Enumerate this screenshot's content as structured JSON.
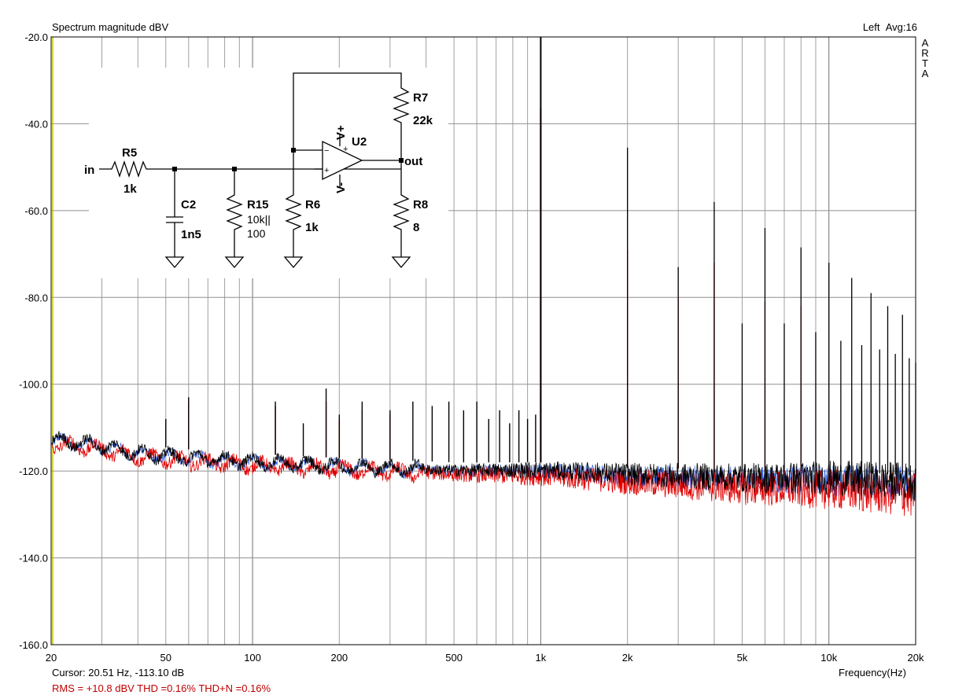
{
  "header": {
    "title": "Spectrum magnitude dBV",
    "channel": "Left",
    "avg": "Avg:16",
    "brand": [
      "A",
      "R",
      "T",
      "A"
    ]
  },
  "footer": {
    "cursor": "Cursor: 20.51 Hz, -113.10 dB",
    "rms": "RMS =  +10.8 dBV   THD =0.16%   THD+N =0.16%"
  },
  "schematic": {
    "labels": {
      "in": "in",
      "R5": "R5",
      "R5v": "1k",
      "C2": "C2",
      "C2v": "1n5",
      "R15": "R15",
      "R15v1": "10k||",
      "R15v2": "100",
      "R6": "R6",
      "R6v": "1k",
      "R7": "R7",
      "R7v": "22k",
      "R8": "R8",
      "R8v": "8",
      "U2": "U2",
      "Vp": "V+",
      "Vm": "V-",
      "out": "out",
      "minus": "−",
      "plus": "+"
    }
  },
  "colors": {
    "grid": "#a0a0a0",
    "trace_black": "#000000",
    "trace_red": "#e00000",
    "trace_blue": "#3060e0",
    "yaxis": "#c8c800"
  },
  "chart_data": {
    "type": "line",
    "title": "Spectrum magnitude dBV",
    "xlabel": "Frequency(Hz)",
    "ylabel": "",
    "xscale": "log",
    "xlim": [
      20,
      20000
    ],
    "ylim": [
      -160,
      -20
    ],
    "xticks": [
      20,
      50,
      100,
      200,
      500,
      1000,
      2000,
      5000,
      10000,
      20000
    ],
    "xtick_labels": [
      "20",
      "50",
      "100",
      "200",
      "500",
      "1k",
      "2k",
      "5k",
      "10k",
      "20k"
    ],
    "yticks": [
      -20,
      -40,
      -60,
      -80,
      -100,
      -120,
      -140,
      -160
    ],
    "ytick_labels": [
      "-20.0",
      "-40.0",
      "-60.0",
      "-80.0",
      "-100.0",
      "-120.0",
      "-140.0",
      "-160.0"
    ],
    "grid": true,
    "series": [
      {
        "color": "black",
        "harmonics": [
          {
            "f": 1000,
            "db": -20
          },
          {
            "f": 2000,
            "db": -45.5
          },
          {
            "f": 3000,
            "db": -73
          },
          {
            "f": 4000,
            "db": -58
          },
          {
            "f": 5000,
            "db": -86
          },
          {
            "f": 6000,
            "db": -64
          },
          {
            "f": 7000,
            "db": -86
          },
          {
            "f": 8000,
            "db": -68.5
          },
          {
            "f": 9000,
            "db": -88
          },
          {
            "f": 10000,
            "db": -72
          },
          {
            "f": 11000,
            "db": -90
          },
          {
            "f": 12000,
            "db": -75.5
          },
          {
            "f": 13000,
            "db": -91
          },
          {
            "f": 14000,
            "db": -79
          },
          {
            "f": 15000,
            "db": -92
          },
          {
            "f": 16000,
            "db": -82
          },
          {
            "f": 17000,
            "db": -93
          },
          {
            "f": 18000,
            "db": -84
          },
          {
            "f": 19000,
            "db": -94
          },
          {
            "f": 20000,
            "db": -95
          }
        ],
        "spurs": [
          {
            "f": 50,
            "db": -108
          },
          {
            "f": 60,
            "db": -103
          },
          {
            "f": 120,
            "db": -104
          },
          {
            "f": 150,
            "db": -109
          },
          {
            "f": 180,
            "db": -101
          },
          {
            "f": 200,
            "db": -107
          },
          {
            "f": 240,
            "db": -104
          },
          {
            "f": 300,
            "db": -106
          },
          {
            "f": 360,
            "db": -104
          },
          {
            "f": 420,
            "db": -105
          },
          {
            "f": 480,
            "db": -104
          },
          {
            "f": 540,
            "db": -106
          },
          {
            "f": 600,
            "db": -104
          },
          {
            "f": 660,
            "db": -108
          },
          {
            "f": 720,
            "db": -106
          },
          {
            "f": 780,
            "db": -109
          },
          {
            "f": 840,
            "db": -106
          },
          {
            "f": 900,
            "db": -108
          },
          {
            "f": 960,
            "db": -107
          }
        ]
      },
      {
        "color": "red",
        "harmonics": [
          {
            "f": 1000,
            "db": -36.5
          },
          {
            "f": 2000,
            "db": -69
          },
          {
            "f": 3000,
            "db": -80
          },
          {
            "f": 4000,
            "db": -72
          },
          {
            "f": 6000,
            "db": -81
          },
          {
            "f": 8000,
            "db": -82
          }
        ],
        "spurs": [
          {
            "f": 50,
            "db": -109
          },
          {
            "f": 60,
            "db": -104
          },
          {
            "f": 120,
            "db": -105
          },
          {
            "f": 180,
            "db": -104
          },
          {
            "f": 200,
            "db": -108
          },
          {
            "f": 240,
            "db": -106
          },
          {
            "f": 300,
            "db": -107
          }
        ]
      },
      {
        "color": "blue",
        "harmonics": [],
        "spurs": [
          {
            "f": 50,
            "db": -108
          },
          {
            "f": 60,
            "db": -104
          }
        ]
      }
    ],
    "noise_floor": [
      {
        "f": 20,
        "db": -113
      },
      {
        "f": 28,
        "db": -114
      },
      {
        "f": 40,
        "db": -116
      },
      {
        "f": 60,
        "db": -117
      },
      {
        "f": 100,
        "db": -118
      },
      {
        "f": 200,
        "db": -119
      },
      {
        "f": 500,
        "db": -120
      },
      {
        "f": 1000,
        "db": -120
      },
      {
        "f": 2000,
        "db": -121
      },
      {
        "f": 5000,
        "db": -122
      },
      {
        "f": 10000,
        "db": -122
      },
      {
        "f": 20000,
        "db": -123
      }
    ]
  }
}
